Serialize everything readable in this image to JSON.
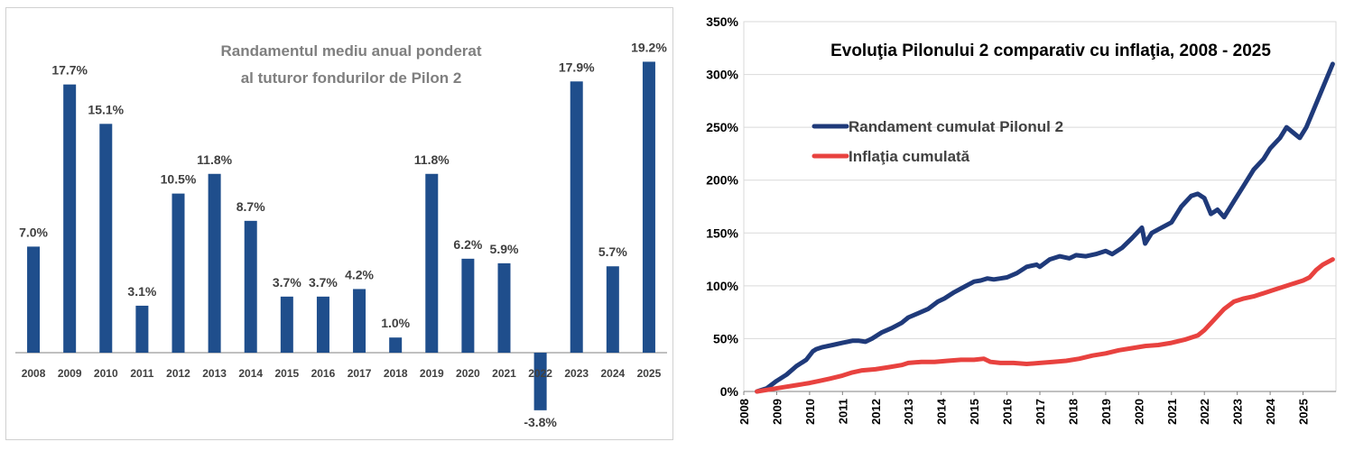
{
  "colors": {
    "bar": "#1f4e8c",
    "pilon_line": "#1f3a7a",
    "inflation_line": "#e8423f",
    "grid": "#d9d9d9",
    "axis": "#808080"
  },
  "chart_data": [
    {
      "type": "bar",
      "title": "Randamentul mediu anual ponderat al tuturor fondurilor de Pilon 2",
      "title_lines": [
        "Randamentul mediu anual ponderat",
        "al tuturor fondurilor de Pilon 2"
      ],
      "categories": [
        "2008",
        "2009",
        "2010",
        "2011",
        "2012",
        "2013",
        "2014",
        "2015",
        "2016",
        "2017",
        "2018",
        "2019",
        "2020",
        "2021",
        "2022",
        "2023",
        "2024",
        "2025"
      ],
      "values": [
        7.0,
        17.7,
        15.1,
        3.1,
        10.5,
        11.8,
        8.7,
        3.7,
        3.7,
        4.2,
        1.0,
        11.8,
        6.2,
        5.9,
        -3.8,
        17.9,
        5.7,
        19.2
      ],
      "value_labels": [
        "7.0%",
        "17.7%",
        "15.1%",
        "3.1%",
        "10.5%",
        "11.8%",
        "8.7%",
        "3.7%",
        "3.7%",
        "4.2%",
        "1.0%",
        "11.8%",
        "6.2%",
        "5.9%",
        "-3.8%",
        "17.9%",
        "5.7%",
        "19.2%"
      ],
      "ylim": [
        -6,
        21
      ]
    },
    {
      "type": "line",
      "title": "Evoluţia Pilonului 2 comparativ cu inflaţia, 2008 - 2025",
      "ylim": [
        0,
        350
      ],
      "y_ticks": [
        0,
        50,
        100,
        150,
        200,
        250,
        300,
        350
      ],
      "y_tick_labels": [
        "0%",
        "50%",
        "100%",
        "150%",
        "200%",
        "250%",
        "300%",
        "350%"
      ],
      "x_ticks": [
        2008,
        2009,
        2010,
        2011,
        2012,
        2013,
        2014,
        2015,
        2016,
        2017,
        2018,
        2019,
        2020,
        2021,
        2022,
        2023,
        2024,
        2025
      ],
      "x_tick_labels": [
        "2008",
        "2009",
        "2010",
        "2011",
        "2012",
        "2013",
        "2014",
        "2015",
        "2016",
        "2017",
        "2018",
        "2019",
        "2020",
        "2021",
        "2022",
        "2023",
        "2024",
        "2025"
      ],
      "xlim": [
        2008,
        2026
      ],
      "legend": [
        "Randament cumulat Pilonul 2",
        "Inflaţia cumulată"
      ],
      "series": [
        {
          "name": "Randament cumulat Pilonul 2",
          "x": [
            2008.4,
            2008.7,
            2009.0,
            2009.3,
            2009.6,
            2009.9,
            2010.1,
            2010.2,
            2010.4,
            2010.7,
            2011.0,
            2011.3,
            2011.5,
            2011.7,
            2011.9,
            2012.2,
            2012.5,
            2012.8,
            2013.0,
            2013.3,
            2013.6,
            2013.9,
            2014.1,
            2014.4,
            2014.7,
            2015.0,
            2015.2,
            2015.4,
            2015.6,
            2015.8,
            2016.0,
            2016.3,
            2016.6,
            2016.9,
            2017.0,
            2017.3,
            2017.6,
            2017.9,
            2018.1,
            2018.4,
            2018.7,
            2019.0,
            2019.2,
            2019.5,
            2019.8,
            2020.1,
            2020.2,
            2020.4,
            2020.7,
            2021.0,
            2021.3,
            2021.6,
            2021.8,
            2022.0,
            2022.2,
            2022.4,
            2022.6,
            2022.9,
            2023.2,
            2023.5,
            2023.8,
            2024.0,
            2024.3,
            2024.5,
            2024.7,
            2024.9,
            2025.1,
            2025.3,
            2025.5,
            2025.7,
            2025.9
          ],
          "values": [
            0,
            3,
            10,
            16,
            24,
            30,
            38,
            40,
            42,
            44,
            46,
            48,
            48,
            47,
            50,
            56,
            60,
            65,
            70,
            74,
            78,
            85,
            88,
            94,
            99,
            104,
            105,
            107,
            106,
            107,
            108,
            112,
            118,
            120,
            118,
            125,
            128,
            126,
            129,
            128,
            130,
            133,
            130,
            136,
            145,
            155,
            140,
            150,
            155,
            160,
            175,
            185,
            187,
            183,
            168,
            172,
            165,
            180,
            195,
            210,
            220,
            230,
            240,
            250,
            245,
            240,
            250,
            265,
            280,
            295,
            310
          ]
        },
        {
          "name": "Inflaţia cumulată",
          "x": [
            2008.4,
            2008.8,
            2009.2,
            2009.6,
            2010.0,
            2010.3,
            2010.6,
            2011.0,
            2011.3,
            2011.6,
            2012.0,
            2012.4,
            2012.8,
            2013.0,
            2013.4,
            2013.8,
            2014.2,
            2014.6,
            2015.0,
            2015.3,
            2015.5,
            2015.8,
            2016.2,
            2016.6,
            2017.0,
            2017.4,
            2017.8,
            2018.2,
            2018.6,
            2019.0,
            2019.4,
            2019.8,
            2020.2,
            2020.6,
            2021.0,
            2021.4,
            2021.8,
            2022.0,
            2022.3,
            2022.6,
            2022.9,
            2023.2,
            2023.5,
            2023.8,
            2024.1,
            2024.4,
            2024.7,
            2025.0,
            2025.2,
            2025.4,
            2025.6,
            2025.9
          ],
          "values": [
            0,
            2,
            4,
            6,
            8,
            10,
            12,
            15,
            18,
            20,
            21,
            23,
            25,
            27,
            28,
            28,
            29,
            30,
            30,
            31,
            28,
            27,
            27,
            26,
            27,
            28,
            29,
            31,
            34,
            36,
            39,
            41,
            43,
            44,
            46,
            49,
            53,
            58,
            68,
            78,
            85,
            88,
            90,
            93,
            96,
            99,
            102,
            105,
            108,
            115,
            120,
            125
          ]
        }
      ]
    }
  ]
}
